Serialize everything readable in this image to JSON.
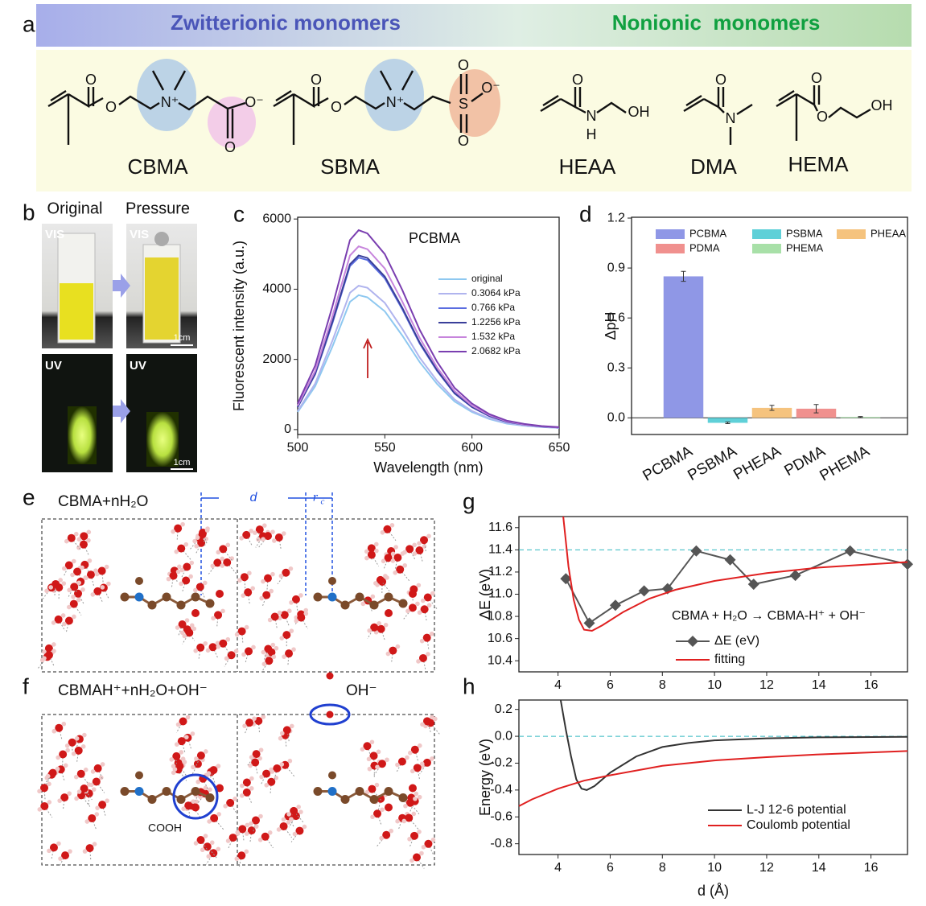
{
  "panel_a": {
    "panel": "a",
    "headers": [
      "Zwitterionic monomers",
      "Nonionic  monomers"
    ],
    "monomers": [
      {
        "name": "CBMA",
        "atoms": [
          "O",
          "O",
          "N⁺",
          "O⁻",
          "O"
        ]
      },
      {
        "name": "SBMA",
        "atoms": [
          "O",
          "O",
          "N⁺",
          "S",
          "O",
          "O⁻",
          "O"
        ]
      },
      {
        "name": "HEAA",
        "atoms": [
          "O",
          "N",
          "H",
          "OH"
        ]
      },
      {
        "name": "DMA",
        "atoms": [
          "O",
          "N"
        ]
      },
      {
        "name": "HEMA",
        "atoms": [
          "O",
          "O",
          "OH"
        ]
      }
    ]
  },
  "panel_b": {
    "panel": "b",
    "columns": [
      "Original",
      "Pressure"
    ],
    "photos": [
      "VIS",
      "VIS",
      "UV",
      "UV"
    ],
    "scale_bars": [
      "1cm",
      "1cm"
    ]
  },
  "panel_e": {
    "panel": "e",
    "title": "CBMA+nH₂O",
    "d": "d",
    "r": "r",
    "r_sub": "c"
  },
  "panel_f": {
    "panel": "f",
    "title": "CBMAH⁺+nH₂O+OH⁻",
    "annotations": [
      "OH⁻",
      "COOH"
    ]
  },
  "chart_data": [
    {
      "panel": "c",
      "type": "line",
      "annotation": "PCBMA",
      "x_label": "Wavelength (nm)",
      "y_label": "Fluorescent intensity (a.u.)",
      "x": [
        500,
        510,
        520,
        530,
        535,
        540,
        550,
        560,
        570,
        580,
        590,
        600,
        610,
        620,
        630,
        640,
        650
      ],
      "series": [
        {
          "name": "original",
          "color": "#8ec8f0",
          "values": [
            500,
            1230,
            2370,
            3640,
            3830,
            3770,
            3370,
            2680,
            1920,
            1300,
            800,
            500,
            300,
            170,
            110,
            70,
            45
          ]
        },
        {
          "name": "0.3064 kPa",
          "color": "#b0b4ee",
          "values": [
            530,
            1310,
            2540,
            3900,
            4100,
            4040,
            3610,
            2870,
            2050,
            1390,
            860,
            530,
            320,
            185,
            115,
            75,
            50
          ]
        },
        {
          "name": "0.766 kPa",
          "color": "#5a6de0",
          "values": [
            640,
            1570,
            3040,
            4660,
            4900,
            4830,
            4310,
            3430,
            2450,
            1670,
            1030,
            640,
            380,
            220,
            140,
            90,
            60
          ]
        },
        {
          "name": "1.2256 kPa",
          "color": "#3a3f9a",
          "values": [
            645,
            1590,
            3080,
            4710,
            4960,
            4890,
            4360,
            3470,
            2480,
            1690,
            1040,
            645,
            390,
            225,
            140,
            90,
            60
          ]
        },
        {
          "name": "1.532 kPa",
          "color": "#c785dc",
          "values": [
            680,
            1670,
            3240,
            4960,
            5220,
            5140,
            4590,
            3650,
            2610,
            1770,
            1100,
            680,
            410,
            235,
            145,
            95,
            62
          ]
        },
        {
          "name": "2.0682 kPa",
          "color": "#7a3eb0",
          "values": [
            740,
            1820,
            3520,
            5400,
            5680,
            5590,
            5000,
            3980,
            2840,
            1930,
            1190,
            740,
            440,
            255,
            160,
            100,
            68
          ]
        }
      ],
      "xlim": [
        500,
        650
      ],
      "ylim": [
        -140,
        6050
      ],
      "xticks": [
        500,
        550,
        600,
        650
      ],
      "yticks": [
        0,
        2000,
        4000,
        6000
      ],
      "legend": "right"
    },
    {
      "panel": "d",
      "type": "bar",
      "y_label": "ΔpH",
      "categories": [
        "PCBMA",
        "PSBMA",
        "PHEAA",
        "PDMA",
        "PHEMA"
      ],
      "values": [
        0.85,
        -0.03,
        0.06,
        0.055,
        0.005
      ],
      "errors": [
        0.03,
        0.005,
        0.015,
        0.025,
        0.003
      ],
      "colors": [
        "#8f97e6",
        "#5fd0d8",
        "#f5c37e",
        "#f0908e",
        "#a8e0a8"
      ],
      "ylim": [
        -0.1,
        1.205
      ],
      "yticks": [
        {
          "value": 0,
          "label": "0.0"
        },
        0.3,
        0.6,
        0.9,
        1.2
      ],
      "legend": "top"
    },
    {
      "panel": "g",
      "type": "line",
      "annotation": "CBMA + H₂O → CBMA-H⁺ + OH⁻",
      "y_label": "ΔE (eV)",
      "xlim": [
        2.5,
        17.4
      ],
      "ylim": [
        10.3,
        11.7
      ],
      "xticks": [
        4,
        6,
        8,
        10,
        12,
        14,
        16
      ],
      "yticks": [
        10.4,
        10.6,
        10.8,
        {
          "value": 11,
          "label": "11.0"
        },
        11.2,
        11.4,
        11.6
      ],
      "ref_line": 11.4,
      "series": [
        {
          "name": "ΔE (eV)",
          "color": "#555555",
          "marker": "diamond",
          "x": [
            4.3,
            5.2,
            6.2,
            7.3,
            8.2,
            9.3,
            10.6,
            11.5,
            13.1,
            15.2,
            17.4
          ],
          "values": [
            11.14,
            10.74,
            10.9,
            11.03,
            11.05,
            11.39,
            11.31,
            11.09,
            11.17,
            11.39,
            11.27
          ]
        },
        {
          "name": "fitting",
          "color": "#e02020",
          "x": [
            4.2,
            4.4,
            4.6,
            4.8,
            5.0,
            5.3,
            5.7,
            6.5,
            7.5,
            8.5,
            10,
            12,
            14,
            16,
            17.4
          ],
          "values": [
            11.7,
            11.25,
            10.95,
            10.77,
            10.68,
            10.67,
            10.72,
            10.84,
            10.96,
            11.04,
            11.12,
            11.19,
            11.24,
            11.27,
            11.29
          ]
        }
      ],
      "legend": "lower right"
    },
    {
      "panel": "h",
      "type": "line",
      "x_label": "d (Å)",
      "y_label": "Energy (eV)",
      "xlim": [
        2.5,
        17.4
      ],
      "ylim": [
        -0.88,
        0.27
      ],
      "xticks": [
        4,
        6,
        8,
        10,
        12,
        14,
        16
      ],
      "yticks": [
        0.2,
        {
          "value": 0,
          "label": "0.0"
        },
        -0.2,
        -0.4,
        -0.6,
        -0.8
      ],
      "ref_line": 0,
      "series": [
        {
          "name": "L-J 12-6 potential",
          "color": "#333333",
          "x": [
            4.1,
            4.3,
            4.5,
            4.7,
            4.9,
            5.1,
            5.4,
            6,
            7,
            8,
            9,
            10,
            12,
            14,
            17.4
          ],
          "values": [
            0.27,
            0.05,
            -0.15,
            -0.32,
            -0.39,
            -0.4,
            -0.37,
            -0.27,
            -0.15,
            -0.08,
            -0.05,
            -0.03,
            -0.015,
            -0.008,
            -0.004
          ]
        },
        {
          "name": "Coulomb potential",
          "color": "#e02020",
          "x": [
            2.5,
            3,
            4,
            5,
            6,
            8,
            10,
            12,
            14,
            17.4
          ],
          "values": [
            -0.52,
            -0.47,
            -0.39,
            -0.33,
            -0.29,
            -0.22,
            -0.18,
            -0.155,
            -0.135,
            -0.11
          ]
        }
      ],
      "legend": "lower right"
    }
  ]
}
